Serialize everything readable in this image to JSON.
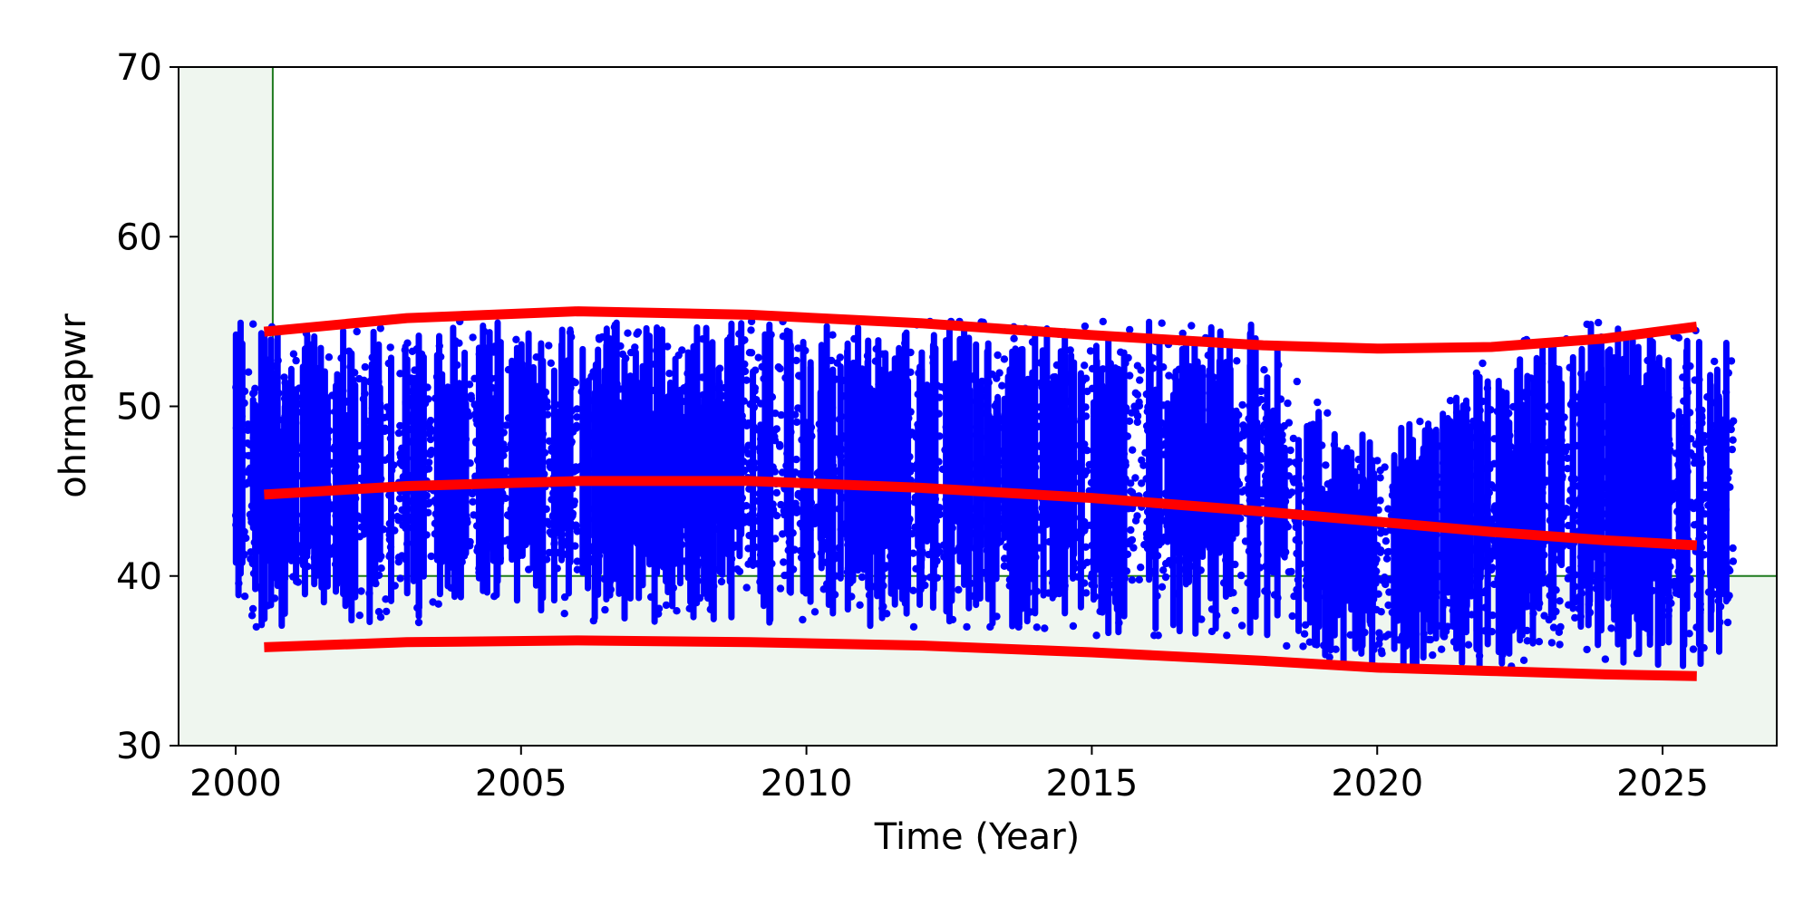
{
  "chart_data": {
    "type": "scatter",
    "title": "",
    "xlabel": "Time (Year)",
    "ylabel": "ohrmapwr",
    "xlim": [
      1999.0,
      2027.0
    ],
    "ylim": [
      30,
      70
    ],
    "xticks": [
      2000,
      2005,
      2010,
      2015,
      2020,
      2025
    ],
    "xtick_labels": [
      "2000",
      "2005",
      "2010",
      "2015",
      "2020",
      "2025"
    ],
    "yticks": [
      30,
      40,
      50,
      60,
      70
    ],
    "ytick_labels": [
      "30",
      "40",
      "50",
      "60",
      "70"
    ],
    "grid": false,
    "legend": "none",
    "shaded_region": {
      "x_start": 1999.0,
      "x_end": 2000.65,
      "y_limit": 40,
      "color": "#eff6ef",
      "border_color": "#1e7a1e"
    },
    "scatter": {
      "color": "#0000ff",
      "x_range": [
        2000.0,
        2026.25
      ],
      "envelope": {
        "x": [
          2000.0,
          2001.0,
          2002.0,
          2003.0,
          2004.0,
          2005.0,
          2006.0,
          2007.0,
          2008.0,
          2009.0,
          2010.0,
          2011.0,
          2012.0,
          2013.0,
          2014.0,
          2015.0,
          2016.0,
          2017.0,
          2018.0,
          2019.0,
          2020.0,
          2021.0,
          2022.0,
          2023.0,
          2024.0,
          2025.0,
          2026.25
        ],
        "low": [
          37.0,
          37.0,
          37.0,
          37.0,
          38.0,
          38.0,
          37.5,
          37.0,
          37.0,
          37.0,
          37.0,
          37.0,
          37.0,
          37.0,
          37.0,
          36.5,
          36.5,
          36.5,
          36.5,
          35.0,
          34.5,
          34.5,
          34.5,
          35.0,
          34.5,
          34.5,
          34.5
        ],
        "high": [
          55.0,
          54.5,
          55.0,
          55.0,
          55.0,
          55.0,
          55.0,
          55.0,
          55.0,
          55.0,
          55.0,
          55.0,
          55.0,
          55.0,
          54.5,
          55.0,
          55.0,
          55.0,
          55.0,
          50.0,
          48.0,
          50.0,
          53.0,
          54.5,
          55.0,
          54.0,
          55.0
        ]
      }
    },
    "series": [
      {
        "color": "#ff0000",
        "x": [
          2000.5,
          2003.0,
          2006.0,
          2009.0,
          2012.0,
          2015.0,
          2018.0,
          2020.0,
          2022.0,
          2024.0,
          2025.6
        ],
        "y": [
          54.4,
          55.2,
          55.6,
          55.4,
          54.9,
          54.2,
          53.6,
          53.4,
          53.5,
          54.0,
          54.7
        ]
      },
      {
        "color": "#ff0000",
        "x": [
          2000.5,
          2003.0,
          2006.0,
          2009.0,
          2012.0,
          2015.0,
          2018.0,
          2020.0,
          2022.0,
          2024.0,
          2025.6
        ],
        "y": [
          44.8,
          45.3,
          45.6,
          45.6,
          45.2,
          44.6,
          43.8,
          43.2,
          42.6,
          42.1,
          41.8
        ]
      },
      {
        "color": "#ff0000",
        "x": [
          2000.5,
          2003.0,
          2006.0,
          2009.0,
          2012.0,
          2015.0,
          2018.0,
          2020.0,
          2022.0,
          2024.0,
          2025.6
        ],
        "y": [
          35.8,
          36.1,
          36.2,
          36.1,
          35.9,
          35.5,
          35.0,
          34.6,
          34.4,
          34.2,
          34.1
        ]
      }
    ]
  }
}
